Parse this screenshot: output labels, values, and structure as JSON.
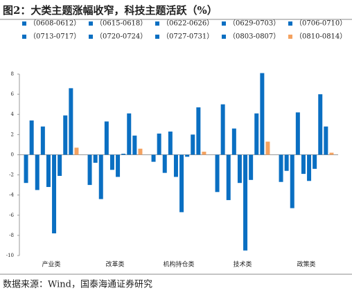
{
  "chart_data": {
    "type": "bar",
    "title": "图2：大类主题涨幅收窄，科技主题活跃（%）",
    "source": "数据来源：Wind，国泰海通证券研究",
    "categories": [
      "产业类",
      "改革类",
      "机构持仓类",
      "技术类",
      "政策类"
    ],
    "series": [
      {
        "name": "（0608-0612）",
        "color": "#0a6fc2",
        "values": [
          -2.8,
          -3.0,
          -0.7,
          -3.7,
          -2.7
        ]
      },
      {
        "name": "（0615-0618）",
        "color": "#0a6fc2",
        "values": [
          3.4,
          -0.8,
          2.1,
          5.0,
          -1.6
        ]
      },
      {
        "name": "（0622-0626）",
        "color": "#0a6fc2",
        "values": [
          -3.5,
          -4.4,
          -1.8,
          -4.5,
          -5.3
        ]
      },
      {
        "name": "（0629-0703）",
        "color": "#0a6fc2",
        "values": [
          2.8,
          3.3,
          2.3,
          2.6,
          4.2
        ]
      },
      {
        "name": "（0706-0710）",
        "color": "#0a6fc2",
        "values": [
          -3.2,
          -1.5,
          -2.2,
          -2.8,
          -1.9
        ]
      },
      {
        "name": "（0713-0717）",
        "color": "#0a6fc2",
        "values": [
          -7.8,
          -2.2,
          -5.7,
          -9.5,
          -2.6
        ]
      },
      {
        "name": "（0720-0724）",
        "color": "#0a6fc2",
        "values": [
          -2.1,
          0.1,
          -0.2,
          -2.5,
          -1.4
        ]
      },
      {
        "name": "（0727-0731）",
        "color": "#0a6fc2",
        "values": [
          3.9,
          4.1,
          2.0,
          4.1,
          6.0
        ]
      },
      {
        "name": "（0803-0807）",
        "color": "#0a6fc2",
        "values": [
          6.6,
          1.9,
          4.7,
          8.1,
          2.8
        ]
      },
      {
        "name": "（0810-0814）",
        "color": "#f4a260",
        "values": [
          0.7,
          0.6,
          0.3,
          1.3,
          0.2
        ]
      }
    ],
    "ylim": [
      -10,
      8
    ],
    "yticks": [
      -10,
      -8,
      -6,
      -4,
      -2,
      0,
      2,
      4,
      6,
      8
    ]
  }
}
